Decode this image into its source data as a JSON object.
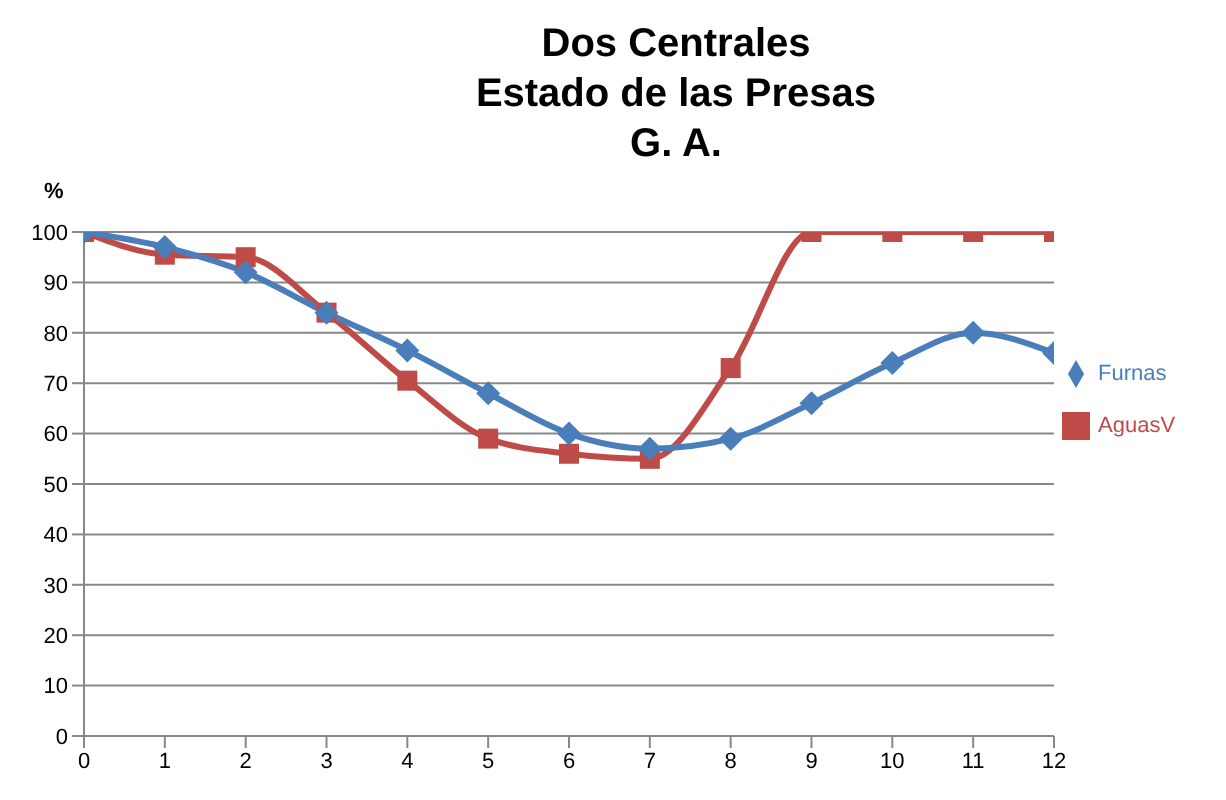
{
  "chart_data": {
    "type": "line",
    "title": "Dos Centrales\nEstado de las Presas\nG. A.",
    "ylabel": "%",
    "x": [
      0,
      1,
      2,
      3,
      4,
      5,
      6,
      7,
      8,
      9,
      10,
      11,
      12
    ],
    "series": [
      {
        "name": "Furnas",
        "color": "#4a7ebb",
        "marker": "diamond",
        "values": [
          100,
          97,
          92,
          84,
          76.5,
          68,
          60,
          57,
          59,
          66,
          74,
          80,
          76
        ]
      },
      {
        "name": "AguasV",
        "color": "#be4b48",
        "marker": "square",
        "values": [
          100,
          95.5,
          95,
          84,
          70.5,
          59,
          56,
          55,
          73,
          100,
          100,
          100,
          100
        ]
      }
    ],
    "xlim": [
      0,
      12
    ],
    "xticks": [
      0,
      1,
      2,
      3,
      4,
      5,
      6,
      7,
      8,
      9,
      10,
      11,
      12
    ],
    "ylim": [
      0,
      100
    ],
    "yticks": [
      0,
      10,
      20,
      30,
      40,
      50,
      60,
      70,
      80,
      90,
      100
    ],
    "grid": "y",
    "legend": "right",
    "line_style": "solid"
  }
}
